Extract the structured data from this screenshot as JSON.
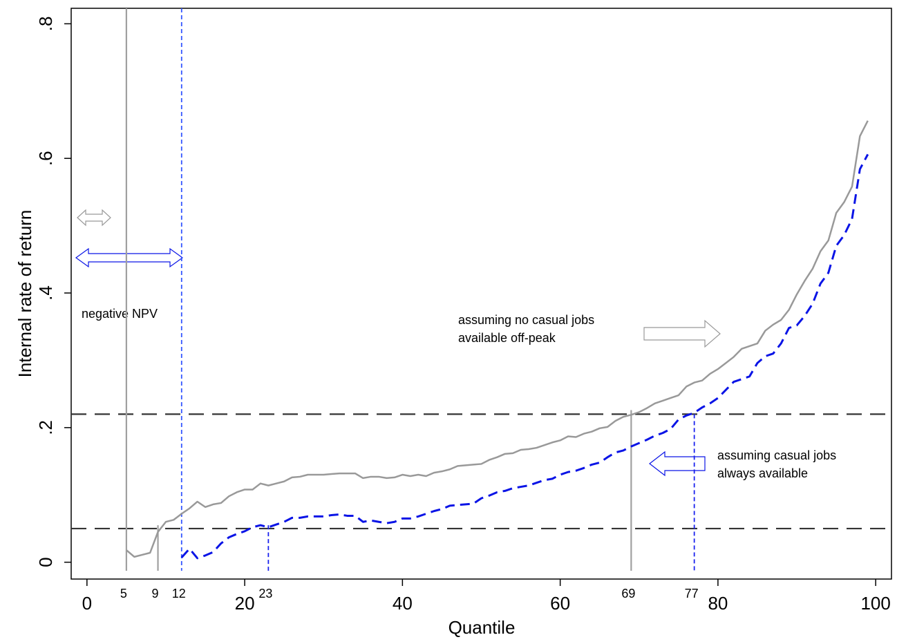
{
  "chart_data": {
    "type": "line",
    "x_label": "Quantile",
    "y_label": "Internal rate of return",
    "xlim": [
      -2,
      102
    ],
    "ylim": [
      -0.025,
      0.823
    ],
    "xticks": [
      0,
      20,
      40,
      60,
      80,
      100
    ],
    "yticks": [
      0,
      {
        "value": 0.2,
        "label": ".2"
      },
      {
        "value": 0.4,
        "label": ".4"
      },
      {
        "value": 0.6,
        "label": ".6"
      },
      {
        "value": 0.8,
        "label": ".8"
      }
    ],
    "series": [
      {
        "name": "assuming no casual jobs available off-peak",
        "color": "#999999",
        "style": "solid",
        "x": [
          5,
          6,
          7,
          8,
          9,
          10,
          11,
          12,
          13,
          14,
          15,
          16,
          17,
          18,
          19,
          20,
          21,
          22,
          23,
          24,
          25,
          26,
          27,
          28,
          29,
          30,
          31,
          32,
          33,
          34,
          35,
          36,
          37,
          38,
          39,
          40,
          41,
          42,
          43,
          44,
          45,
          46,
          47,
          48,
          49,
          50,
          51,
          52,
          53,
          54,
          55,
          56,
          57,
          58,
          59,
          60,
          61,
          62,
          63,
          64,
          65,
          66,
          67,
          68,
          69,
          70,
          71,
          72,
          73,
          74,
          75,
          76,
          77,
          78,
          79,
          80,
          81,
          82,
          83,
          84,
          85,
          86,
          87,
          88,
          89,
          90,
          91,
          92,
          93,
          94,
          95,
          96,
          97,
          98,
          99
        ],
        "values": [
          0.018,
          0.008,
          0.011,
          0.014,
          0.045,
          0.06,
          0.063,
          0.072,
          0.08,
          0.09,
          0.082,
          0.086,
          0.088,
          0.098,
          0.104,
          0.108,
          0.108,
          0.117,
          0.114,
          0.117,
          0.12,
          0.126,
          0.127,
          0.13,
          0.13,
          0.13,
          0.131,
          0.132,
          0.132,
          0.132,
          0.125,
          0.127,
          0.127,
          0.125,
          0.126,
          0.13,
          0.128,
          0.13,
          0.128,
          0.133,
          0.135,
          0.138,
          0.143,
          0.144,
          0.145,
          0.146,
          0.152,
          0.156,
          0.161,
          0.162,
          0.167,
          0.168,
          0.17,
          0.174,
          0.178,
          0.181,
          0.187,
          0.186,
          0.191,
          0.194,
          0.199,
          0.201,
          0.21,
          0.216,
          0.219,
          0.223,
          0.229,
          0.236,
          0.24,
          0.244,
          0.248,
          0.261,
          0.267,
          0.27,
          0.28,
          0.287,
          0.296,
          0.305,
          0.317,
          0.321,
          0.325,
          0.344,
          0.353,
          0.36,
          0.375,
          0.398,
          0.418,
          0.436,
          0.462,
          0.478,
          0.519,
          0.535,
          0.558,
          0.633,
          0.656
        ]
      },
      {
        "name": "assuming casual jobs always available",
        "color": "#0a14e6",
        "style": "dashed",
        "x": [
          12,
          13,
          14,
          15,
          16,
          17,
          18,
          19,
          20,
          21,
          22,
          23,
          24,
          25,
          26,
          27,
          28,
          29,
          30,
          31,
          32,
          33,
          34,
          35,
          36,
          37,
          38,
          39,
          40,
          41,
          42,
          43,
          44,
          45,
          46,
          47,
          48,
          49,
          50,
          51,
          52,
          53,
          54,
          55,
          56,
          57,
          58,
          59,
          60,
          61,
          62,
          63,
          64,
          65,
          66,
          67,
          68,
          69,
          70,
          71,
          72,
          73,
          74,
          75,
          76,
          77,
          78,
          79,
          80,
          81,
          82,
          83,
          84,
          85,
          86,
          87,
          88,
          89,
          90,
          91,
          92,
          93,
          94,
          95,
          96,
          97,
          98,
          99
        ],
        "values": [
          0.007,
          0.02,
          0.006,
          0.01,
          0.015,
          0.028,
          0.037,
          0.042,
          0.046,
          0.052,
          0.055,
          0.052,
          0.056,
          0.06,
          0.066,
          0.066,
          0.068,
          0.068,
          0.068,
          0.07,
          0.071,
          0.069,
          0.069,
          0.06,
          0.062,
          0.06,
          0.058,
          0.06,
          0.065,
          0.065,
          0.068,
          0.072,
          0.076,
          0.079,
          0.084,
          0.085,
          0.086,
          0.087,
          0.095,
          0.099,
          0.104,
          0.106,
          0.11,
          0.112,
          0.114,
          0.118,
          0.122,
          0.124,
          0.13,
          0.134,
          0.136,
          0.14,
          0.145,
          0.148,
          0.156,
          0.163,
          0.166,
          0.172,
          0.177,
          0.182,
          0.188,
          0.192,
          0.198,
          0.212,
          0.218,
          0.222,
          0.23,
          0.236,
          0.244,
          0.256,
          0.268,
          0.272,
          0.276,
          0.296,
          0.306,
          0.31,
          0.325,
          0.348,
          0.352,
          0.366,
          0.384,
          0.414,
          0.43,
          0.47,
          0.486,
          0.51,
          0.584,
          0.606
        ]
      }
    ],
    "hlines": [
      0.05,
      0.22
    ],
    "vlines": [
      {
        "x": 5,
        "color": "#a0a0a0",
        "style": "solid"
      },
      {
        "x": 9,
        "color": "#a0a0a0",
        "style": "solid",
        "ymax": 0.055
      },
      {
        "x": 12,
        "color": "#3355ff",
        "style": "dashed"
      },
      {
        "x": 23,
        "color": "#1a22ee",
        "style": "dashed",
        "ymax": 0.055
      },
      {
        "x": 69,
        "color": "#a0a0a0",
        "style": "solid",
        "ymax": 0.226
      },
      {
        "x": 77,
        "color": "#1a22ee",
        "style": "dashed",
        "ymax": 0.22
      }
    ],
    "annotations": [
      "negative NPV",
      "assuming no casual jobs",
      "available off-peak",
      "assuming casual jobs",
      "always available"
    ]
  }
}
